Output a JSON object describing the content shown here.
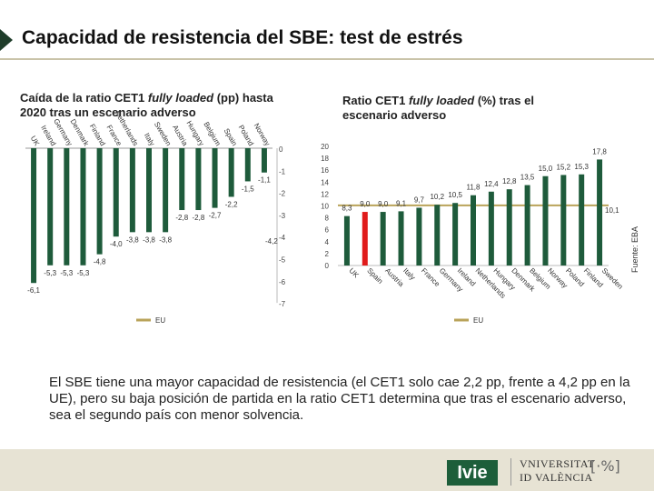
{
  "header": {
    "title": "Capacidad de resistencia del SBE: test de estrés"
  },
  "left_subtitle": {
    "pre": "Caída de la ratio CET1 ",
    "italic": "fully loaded",
    "post": " (pp) hasta 2020 tras un escenario adverso"
  },
  "right_subtitle": {
    "pre": "Ratio CET1 ",
    "italic": "fully loaded",
    "post": " (%) tras el escenario adverso"
  },
  "summary": "El SBE tiene una mayor capacidad de resistencia (el CET1 solo cae 2,2 pp, frente a 4,2 pp en la UE), pero su baja posición de partida en la ratio CET1 determina que tras el escenario adverso, sea el segundo país con menor solvencia.",
  "source": "Fuente: EBA",
  "footer": {
    "ivie_label": "Ivie",
    "univ_line1": "VNIVERSITAT",
    "univ_line2": "ID VALÈNCIA"
  },
  "colors": {
    "bar": "#1e5b3b",
    "highlight": "#e01b1b",
    "eu_line": "#b9a35a",
    "gridline": "#d9d9d9",
    "title_arrow": "#1f3d2a"
  },
  "chart_data": [
    {
      "type": "bar",
      "title": "Caída de la ratio CET1 fully loaded (pp) hasta 2020 tras un escenario adverso",
      "categories": [
        "UK",
        "Ireland",
        "Germany",
        "Denmark",
        "Finland",
        "France",
        "Netherlands",
        "Italy",
        "Sweden",
        "Austria",
        "Hungary",
        "Belgium",
        "Spain",
        "Poland",
        "Norway"
      ],
      "values": [
        -6.1,
        -5.3,
        -5.3,
        -5.3,
        -4.8,
        -4.0,
        -3.8,
        -3.8,
        -3.8,
        -2.8,
        -2.8,
        -2.7,
        -2.2,
        -1.5,
        -1.1
      ],
      "value_labels": [
        "-6,1",
        "-5,3",
        "-5,3",
        "-5,3",
        "-4,8",
        "-4,0",
        "-3,8",
        "-3,8",
        "-3,8",
        "-2,8",
        "-2,8",
        "-2,7",
        "-2,2",
        "-1,5",
        "-1,1"
      ],
      "highlight_category": "Spain",
      "ylim": [
        -7,
        0
      ],
      "y_ticks": [
        "0",
        "-1",
        "-2",
        "-3",
        "-4",
        "-5",
        "-6",
        "-7"
      ],
      "reference_line": {
        "name": "EU",
        "value": -4.2,
        "label": "-4,2"
      },
      "legend": [
        "EU"
      ]
    },
    {
      "type": "bar",
      "title": "Ratio CET1 fully loaded (%) tras el escenario adverso",
      "categories": [
        "UK",
        "Spain",
        "Austria",
        "Italy",
        "France",
        "Germany",
        "Ireland",
        "Netherlands",
        "Hungary",
        "Denmark",
        "Belgium",
        "Norway",
        "Poland",
        "Finland",
        "Sweden"
      ],
      "values": [
        8.3,
        9.0,
        9.0,
        9.1,
        9.7,
        10.2,
        10.5,
        11.8,
        12.4,
        12.8,
        13.5,
        15.0,
        15.2,
        15.3,
        17.8
      ],
      "value_labels": [
        "8,3",
        "9,0",
        "9,0",
        "9,1",
        "9,7",
        "10,2",
        "10,5",
        "11,8",
        "12,4",
        "12,8",
        "13,5",
        "15,0",
        "15,2",
        "15,3",
        "17,8"
      ],
      "highlight_category": "Spain",
      "ylim": [
        0,
        20
      ],
      "y_ticks": [
        "0",
        "2",
        "4",
        "6",
        "8",
        "10",
        "12",
        "14",
        "16",
        "18",
        "20"
      ],
      "reference_line": {
        "name": "EU",
        "value": 10.1,
        "label": "10,1"
      },
      "legend": [
        "EU"
      ]
    }
  ]
}
